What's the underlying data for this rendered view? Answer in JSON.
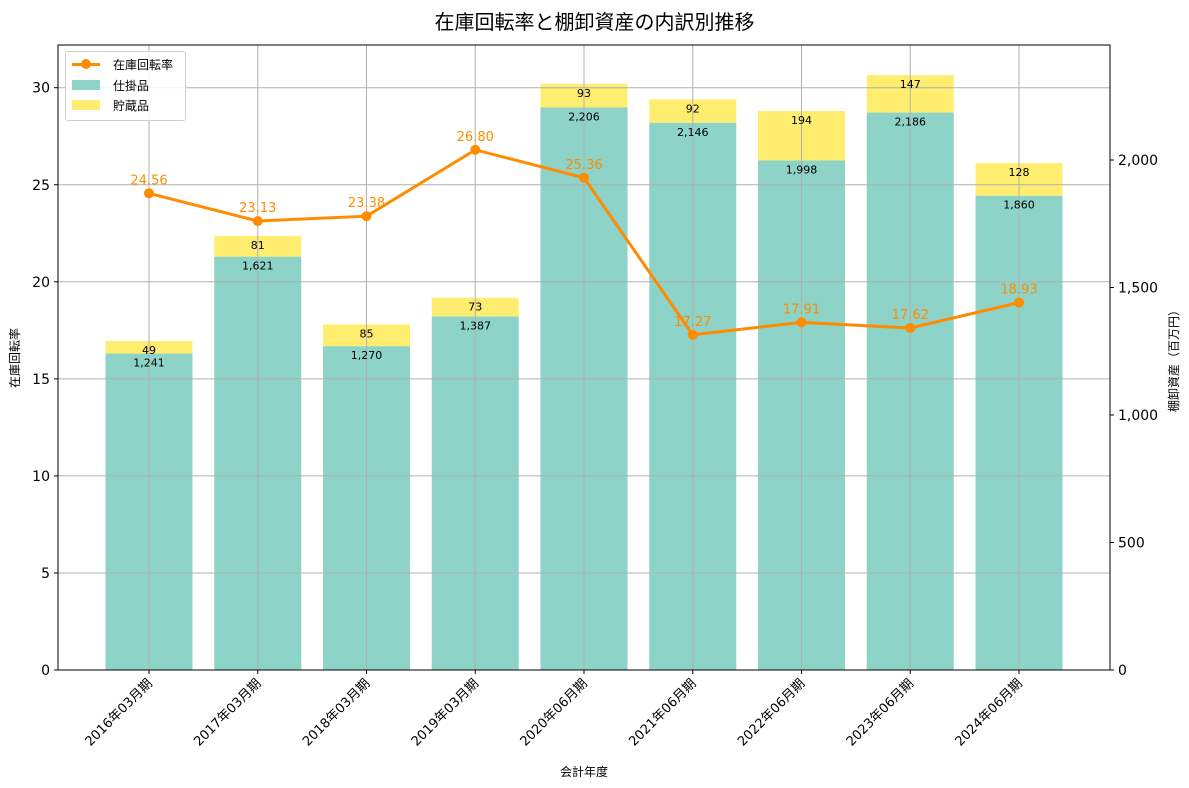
{
  "title": "在庫回転率と棚卸資産の内訳別推移",
  "xlabel": "会計年度",
  "ylabel_left": "在庫回転率",
  "ylabel_right": "棚卸資産（百万円）",
  "legend": {
    "line": "在庫回転率",
    "bar1": "仕掛品",
    "bar2": "貯蔵品"
  },
  "colors": {
    "line": "#ff8c00",
    "bar1": "#8dd3c7",
    "bar2": "#ffed6f",
    "grid": "#b0b0b0"
  },
  "chart_data": {
    "type": "bar",
    "title": "在庫回転率と棚卸資産の内訳別推移",
    "xlabel": "会計年度",
    "categories": [
      "2016年03月期",
      "2017年03月期",
      "2018年03月期",
      "2019年03月期",
      "2020年06月期",
      "2021年06月期",
      "2022年06月期",
      "2023年06月期",
      "2024年06月期"
    ],
    "series": [
      {
        "name": "仕掛品",
        "type": "bar",
        "axis": "right",
        "stacked": true,
        "values": [
          1241,
          1621,
          1270,
          1387,
          2206,
          2146,
          1998,
          2186,
          1860
        ]
      },
      {
        "name": "貯蔵品",
        "type": "bar",
        "axis": "right",
        "stacked": true,
        "values": [
          49,
          81,
          85,
          73,
          93,
          92,
          194,
          147,
          128
        ]
      },
      {
        "name": "在庫回転率",
        "type": "line",
        "axis": "left",
        "values": [
          24.56,
          23.13,
          23.38,
          26.8,
          25.36,
          17.27,
          17.91,
          17.62,
          18.93
        ]
      }
    ],
    "ylabel_left": "在庫回転率",
    "ylim_left": [
      0,
      32.2
    ],
    "yticks_left": [
      0,
      5,
      10,
      15,
      20,
      25,
      30
    ],
    "ylabel_right": "棚卸資産（百万円）",
    "ylim_right": [
      0,
      2451
    ],
    "yticks_right": [
      "0",
      "500",
      "1,000",
      "1,500",
      "2,000"
    ],
    "grid": true,
    "legend_position": "upper left"
  }
}
